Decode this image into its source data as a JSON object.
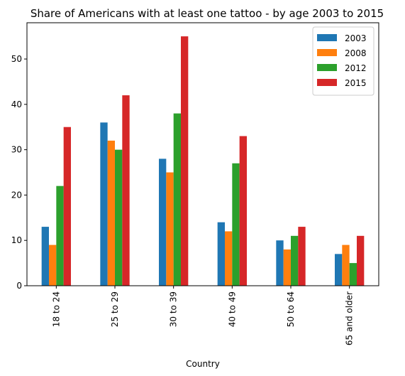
{
  "chart_data": {
    "type": "bar",
    "title": "Share of Americans with at least one tattoo - by age 2003 to 2015",
    "xlabel": "Country",
    "ylabel": "",
    "ylim": [
      0,
      58
    ],
    "yticks": [
      0,
      10,
      20,
      30,
      40,
      50
    ],
    "grid": false,
    "legend_position": "top-right",
    "categories": [
      "18 to 24",
      "25 to 29",
      "30 to 39",
      "40 to 49",
      "50 to 64",
      "65 and older"
    ],
    "series": [
      {
        "name": "2003",
        "color": "#1f77b4",
        "values": [
          13,
          36,
          28,
          14,
          10,
          7
        ]
      },
      {
        "name": "2008",
        "color": "#ff7f0e",
        "values": [
          9,
          32,
          25,
          12,
          8,
          9
        ]
      },
      {
        "name": "2012",
        "color": "#2ca02c",
        "values": [
          22,
          30,
          38,
          27,
          11,
          5
        ]
      },
      {
        "name": "2015",
        "color": "#d62728",
        "values": [
          35,
          42,
          55,
          33,
          13,
          11
        ]
      }
    ]
  }
}
